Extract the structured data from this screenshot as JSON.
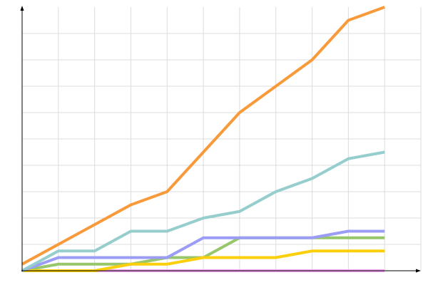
{
  "chart_data": {
    "type": "line",
    "x": [
      0,
      1,
      2,
      3,
      4,
      5,
      6,
      7,
      8,
      9,
      10
    ],
    "xlim": [
      0,
      11
    ],
    "xticks": [
      1,
      2,
      3,
      4,
      5,
      6,
      7,
      8,
      9,
      10,
      11
    ],
    "ylim": [
      0,
      10
    ],
    "yticks": [
      1,
      2,
      3,
      4,
      5,
      6,
      7,
      8,
      9
    ],
    "grid": true,
    "series": [
      {
        "color": "#f4a0f0",
        "values": [
          0,
          0,
          0,
          0,
          0,
          0,
          0,
          0,
          0,
          0,
          0
        ]
      },
      {
        "color": "#97c66b",
        "values": [
          0,
          0.25,
          0.25,
          0.25,
          0.5,
          0.5,
          1.25,
          1.25,
          1.25,
          1.25,
          1.25
        ]
      },
      {
        "color": "#fccf0c",
        "values": [
          0,
          0,
          0,
          0.25,
          0.25,
          0.5,
          0.5,
          0.5,
          0.75,
          0.75,
          0.75
        ]
      },
      {
        "color": "#9b9cf5",
        "values": [
          0,
          0.5,
          0.5,
          0.5,
          0.5,
          1.25,
          1.25,
          1.25,
          1.25,
          1.5,
          1.5
        ]
      },
      {
        "color": "#96cdcd",
        "values": [
          0,
          0.75,
          0.75,
          1.5,
          1.5,
          2,
          2.25,
          3,
          3.5,
          4.25,
          4.5
        ]
      },
      {
        "color": "#f89a3a",
        "values": [
          0.25,
          1,
          1.75,
          2.5,
          3,
          4.5,
          6,
          7,
          8,
          9.5,
          10
        ]
      }
    ]
  }
}
